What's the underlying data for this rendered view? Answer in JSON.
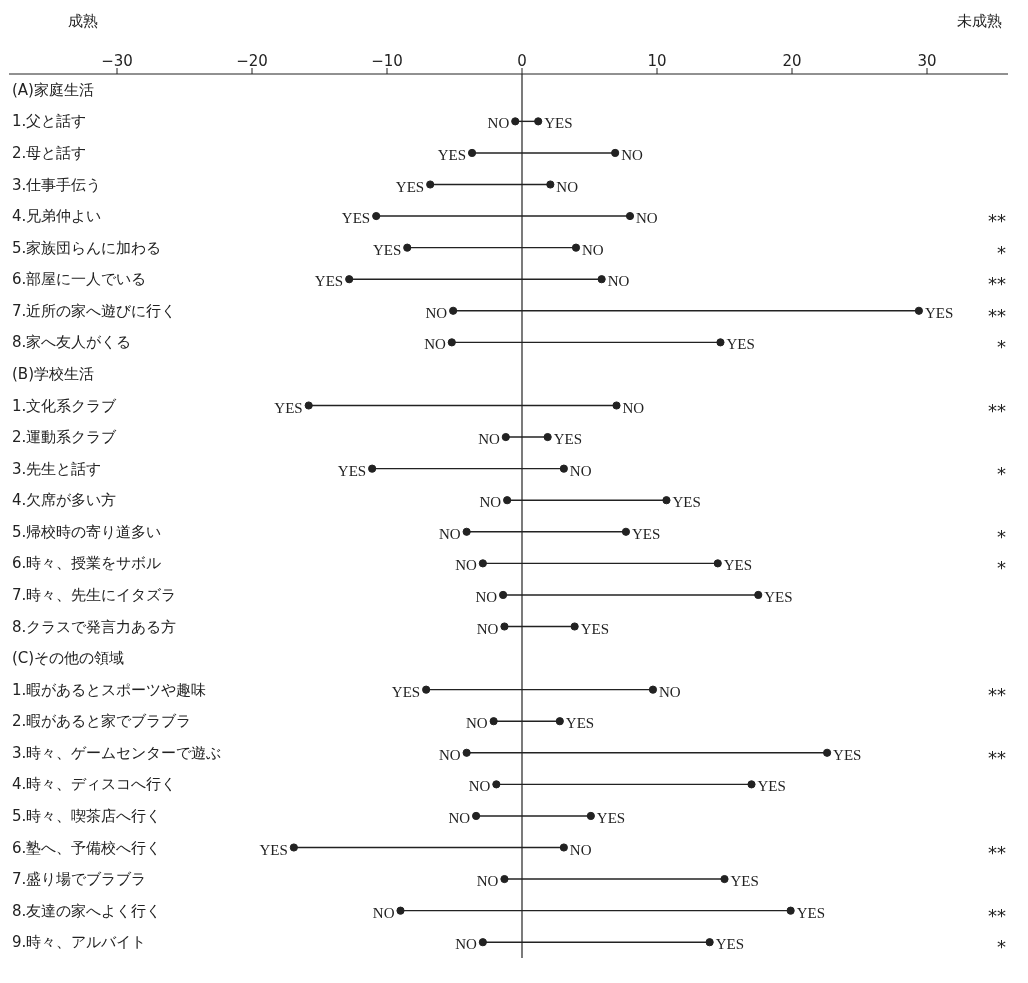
{
  "chart_data": {
    "type": "scatter",
    "orientation": "horizontal",
    "categories": [
      "(A)家庭生活",
      "1.父と話す",
      "2.母と話す",
      "3.仕事手伝う",
      "4.兄弟仲よい",
      "5.家族団らんに加わる",
      "6.部屋に一人でいる",
      "7.近所の家へ遊びに行く",
      "8.家へ友人がくる",
      "(B)学校生活",
      "1.文化系クラブ",
      "2.運動系クラブ",
      "3.先生と話す",
      "4.欠席が多い方",
      "5.帰校時の寄り道多い",
      "6.時々、授業をサボル",
      "7.時々、先生にイタズラ",
      "8.クラスで発言力ある方",
      "(C)その他の領域",
      "1.暇があるとスポーツや趣味",
      "2.暇があると家でブラブラ",
      "3.時々、ゲームセンターで遊ぶ",
      "4.時々、ディスコへ行く",
      "5.時々、喫茶店へ行く",
      "6.塾へ、予備校へ行く",
      "7.盛り場でブラブラ",
      "8.友達の家へよく行く",
      "9.時々、アルバイト"
    ],
    "series": [
      {
        "name": "YES",
        "color": "#222222",
        "values": [
          null,
          1.2,
          -3.7,
          -6.8,
          -10.8,
          -8.5,
          -12.8,
          29.4,
          14.7,
          null,
          -15.8,
          1.9,
          -11.1,
          10.7,
          7.7,
          14.5,
          17.5,
          3.9,
          null,
          -7.1,
          2.8,
          22.6,
          17.0,
          5.1,
          -16.9,
          15.0,
          19.9,
          13.9
        ]
      },
      {
        "name": "NO",
        "color": "#222222",
        "values": [
          null,
          -0.5,
          6.9,
          2.1,
          8.0,
          4.0,
          5.9,
          -5.1,
          -5.2,
          null,
          7.0,
          -1.2,
          3.1,
          -1.1,
          -4.1,
          -2.9,
          -1.4,
          -1.3,
          null,
          9.7,
          -2.1,
          -4.1,
          -1.9,
          -3.4,
          3.1,
          -1.3,
          -9.0,
          -2.9
        ]
      }
    ],
    "xlim": [
      -38,
      36
    ],
    "xticks": [
      -30,
      -20,
      -10,
      0,
      10,
      20,
      30
    ],
    "ref_lines": [
      {
        "axis": "x",
        "value": 0
      }
    ],
    "marker": "circle",
    "legend": false,
    "grid": false,
    "y2_categories": [
      null,
      null,
      null,
      null,
      "**",
      "*",
      "**",
      "**",
      "*",
      null,
      "**",
      null,
      "*",
      null,
      "*",
      "*",
      null,
      null,
      null,
      "**",
      null,
      "**",
      null,
      null,
      "**",
      null,
      "**",
      "*"
    ],
    "annotations": [
      "成熟",
      "未成熟"
    ]
  }
}
